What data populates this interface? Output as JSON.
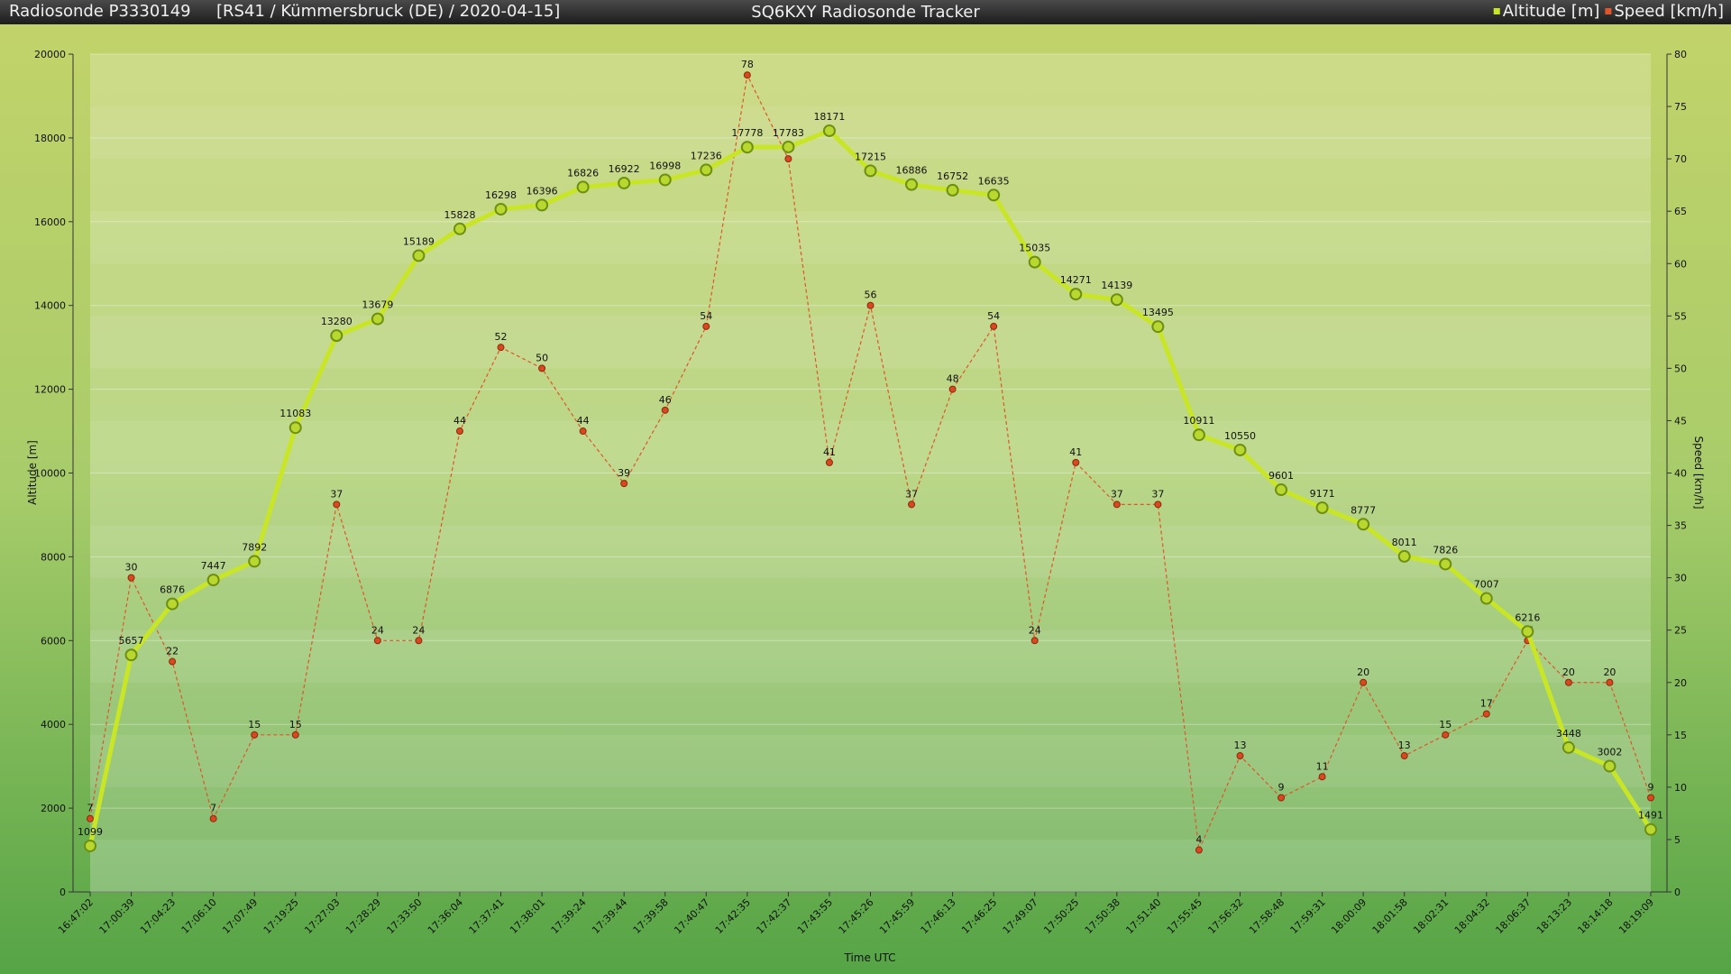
{
  "chart_data": {
    "type": "line",
    "sonde": "Radiosonde P3330149",
    "subtitle": "[RS41 / Kümmersbruck (DE) / 2020-04-15]",
    "title": "SQ6KXY Radiosonde Tracker",
    "x_label": "Time UTC",
    "y_label": "Altitude [m]",
    "y2_label": "Speed [km/h]",
    "legend": "top-right",
    "grid": true,
    "categories": [
      "16:47:02",
      "17:00:39",
      "17:04:23",
      "17:06:10",
      "17:07:49",
      "17:19:25",
      "17:27:03",
      "17:28:29",
      "17:33:50",
      "17:36:04",
      "17:37:41",
      "17:38:01",
      "17:39:24",
      "17:39:44",
      "17:39:58",
      "17:40:47",
      "17:42:35",
      "17:42:37",
      "17:43:55",
      "17:45:26",
      "17:45:59",
      "17:46:13",
      "17:46:25",
      "17:49:07",
      "17:50:25",
      "17:50:38",
      "17:51:40",
      "17:55:45",
      "17:56:32",
      "17:58:48",
      "17:59:31",
      "18:00:09",
      "18:01:58",
      "18:02:31",
      "18:04:32",
      "18:06:37",
      "18:13:23",
      "18:14:18",
      "18:19:09"
    ],
    "series": [
      {
        "name": "Altitude [m]",
        "color": "#c8e626",
        "axis": "y",
        "values": [
          1099,
          5657,
          6876,
          7447,
          7892,
          11083,
          13280,
          13679,
          15189,
          15828,
          16298,
          16396,
          16826,
          16922,
          16998,
          17236,
          17778,
          17783,
          18171,
          17215,
          16886,
          16752,
          16635,
          15035,
          14271,
          14139,
          13495,
          10911,
          10550,
          9601,
          9171,
          8777,
          8011,
          7826,
          7007,
          6216,
          3448,
          3002,
          1491
        ]
      },
      {
        "name": "Speed [km/h]",
        "color": "#e0552a",
        "axis": "y2",
        "values": [
          7,
          30,
          22,
          7,
          15,
          15,
          37,
          24,
          24,
          44,
          52,
          50,
          44,
          39,
          46,
          54,
          78,
          70,
          41,
          56,
          37,
          48,
          54,
          24,
          41,
          37,
          37,
          4,
          13,
          9,
          11,
          20,
          13,
          15,
          17,
          24,
          20,
          20,
          9
        ]
      }
    ],
    "ylim": [
      0,
      20000
    ],
    "yticks": [
      0,
      2000,
      4000,
      6000,
      8000,
      10000,
      12000,
      14000,
      16000,
      18000,
      20000
    ],
    "y2lim": [
      0,
      80
    ],
    "y2ticks": [
      0,
      5,
      10,
      15,
      20,
      25,
      30,
      35,
      40,
      45,
      50,
      55,
      60,
      65,
      70,
      75,
      80
    ]
  }
}
